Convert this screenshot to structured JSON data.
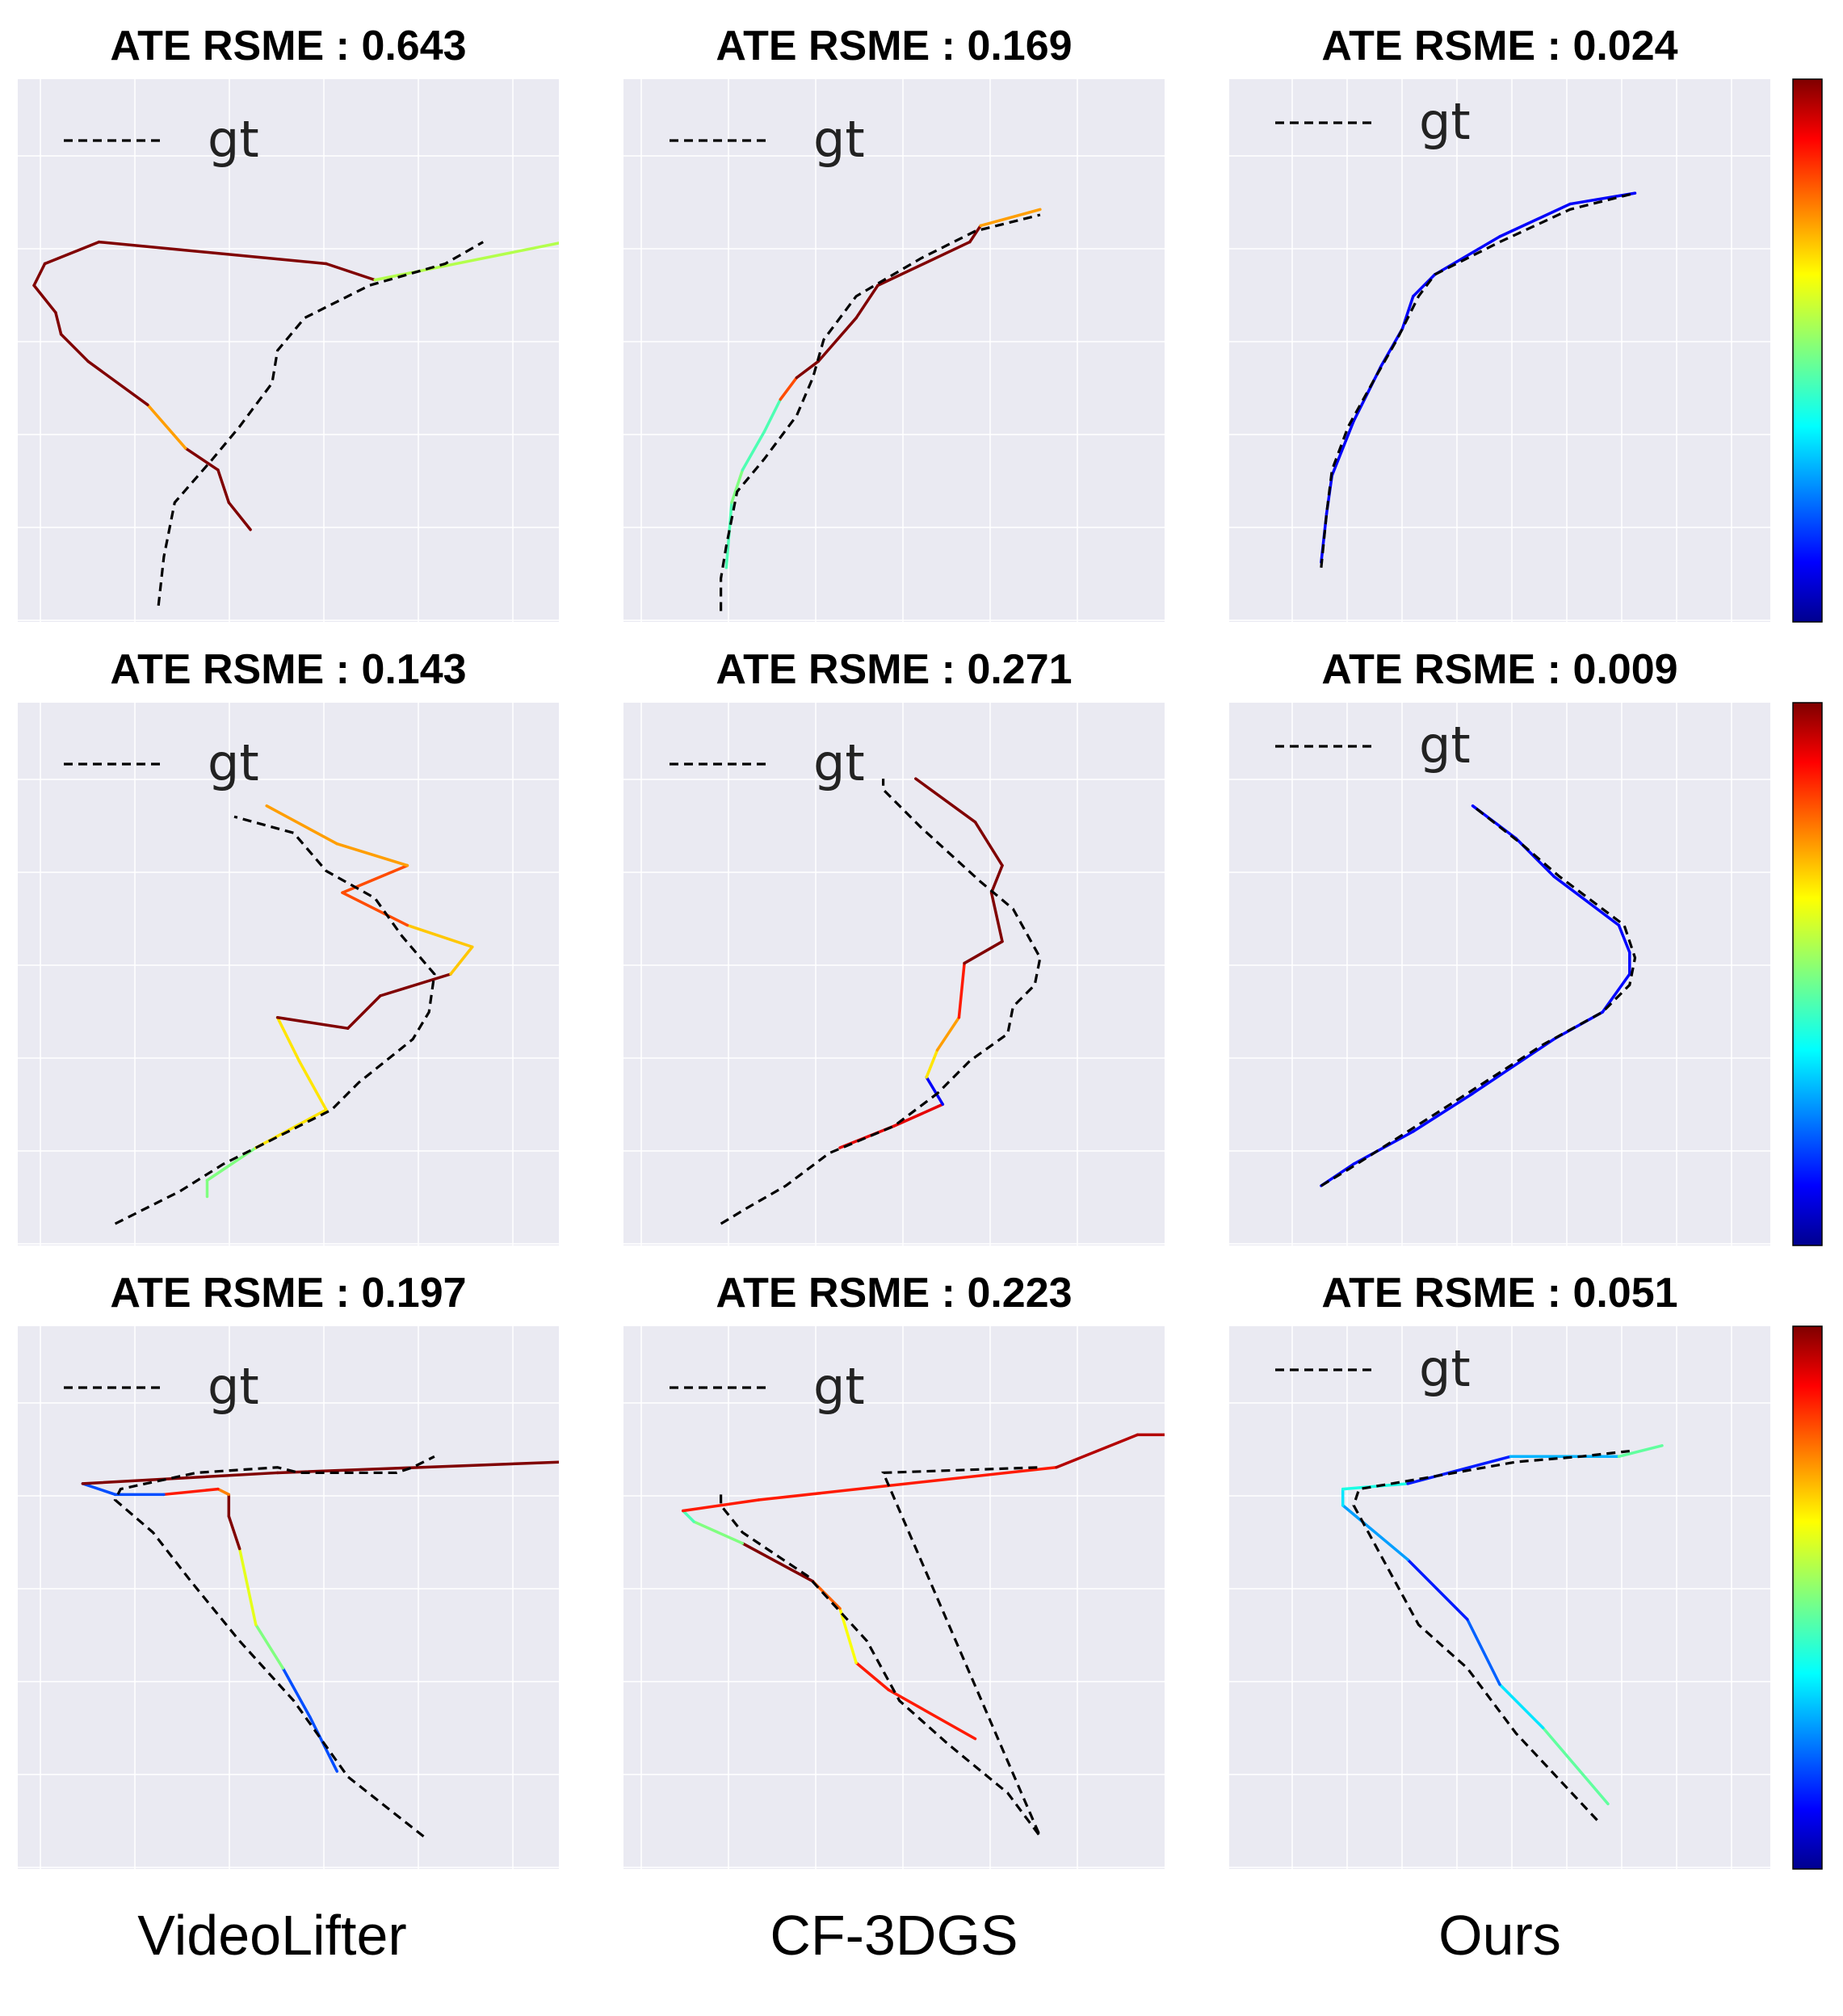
{
  "chart_data": [
    {
      "type": "line",
      "title": "ATE RSME : 0.643",
      "legend": [
        "gt"
      ],
      "grid": true,
      "legend_placement": "top-left",
      "colormap": "jet",
      "gt": [
        [
          0.26,
          0.97
        ],
        [
          0.27,
          0.88
        ],
        [
          0.29,
          0.78
        ],
        [
          0.36,
          0.7
        ],
        [
          0.41,
          0.64
        ],
        [
          0.47,
          0.56
        ],
        [
          0.48,
          0.5
        ],
        [
          0.53,
          0.44
        ],
        [
          0.65,
          0.38
        ],
        [
          0.79,
          0.34
        ],
        [
          0.86,
          0.3
        ]
      ],
      "traj": [
        [
          0.43,
          0.83,
          1.0
        ],
        [
          0.39,
          0.78,
          1.0
        ],
        [
          0.37,
          0.72,
          1.0
        ],
        [
          0.31,
          0.68,
          0.72
        ],
        [
          0.24,
          0.6,
          1.0
        ],
        [
          0.13,
          0.52,
          1.0
        ],
        [
          0.08,
          0.47,
          1.0
        ],
        [
          0.07,
          0.43,
          1.0
        ],
        [
          0.03,
          0.38,
          1.0
        ],
        [
          0.05,
          0.34,
          1.0
        ],
        [
          0.15,
          0.3,
          1.0
        ],
        [
          0.57,
          0.34,
          1.0
        ],
        [
          0.66,
          0.37,
          0.55
        ],
        [
          1.01,
          0.3,
          0.55
        ]
      ]
    },
    {
      "type": "line",
      "title": "ATE RSME : 0.169",
      "legend": [
        "gt"
      ],
      "grid": true,
      "legend_placement": "top-left",
      "colormap": "jet",
      "gt": [
        [
          0.18,
          0.98
        ],
        [
          0.18,
          0.92
        ],
        [
          0.19,
          0.86
        ],
        [
          0.21,
          0.76
        ],
        [
          0.26,
          0.7
        ],
        [
          0.32,
          0.62
        ],
        [
          0.35,
          0.55
        ],
        [
          0.37,
          0.48
        ],
        [
          0.43,
          0.4
        ],
        [
          0.55,
          0.33
        ],
        [
          0.65,
          0.28
        ],
        [
          0.77,
          0.25
        ]
      ],
      "traj": [
        [
          0.19,
          0.9,
          0.45
        ],
        [
          0.2,
          0.78,
          0.5
        ],
        [
          0.22,
          0.72,
          0.45
        ],
        [
          0.26,
          0.65,
          0.45
        ],
        [
          0.29,
          0.59,
          0.8
        ],
        [
          0.32,
          0.55,
          1.0
        ],
        [
          0.36,
          0.52,
          1.0
        ],
        [
          0.43,
          0.44,
          1.0
        ],
        [
          0.47,
          0.38,
          1.0
        ],
        [
          0.64,
          0.3,
          1.0
        ],
        [
          0.66,
          0.27,
          0.72
        ],
        [
          0.77,
          0.24,
          0.72
        ]
      ]
    },
    {
      "type": "line",
      "title": "ATE RSME : 0.024",
      "legend": [
        "gt"
      ],
      "grid": true,
      "legend_placement": "top-left",
      "colormap": "jet",
      "colorbar": true,
      "gt": [
        [
          0.17,
          0.9
        ],
        [
          0.18,
          0.8
        ],
        [
          0.19,
          0.72
        ],
        [
          0.22,
          0.64
        ],
        [
          0.27,
          0.55
        ],
        [
          0.31,
          0.48
        ],
        [
          0.35,
          0.4
        ],
        [
          0.38,
          0.36
        ],
        [
          0.5,
          0.3
        ],
        [
          0.63,
          0.24
        ],
        [
          0.75,
          0.21
        ]
      ],
      "traj": [
        [
          0.17,
          0.89,
          0.12
        ],
        [
          0.18,
          0.8,
          0.12
        ],
        [
          0.19,
          0.73,
          0.12
        ],
        [
          0.23,
          0.63,
          0.12
        ],
        [
          0.28,
          0.53,
          0.12
        ],
        [
          0.32,
          0.46,
          0.12
        ],
        [
          0.34,
          0.4,
          0.12
        ],
        [
          0.38,
          0.36,
          0.12
        ],
        [
          0.5,
          0.29,
          0.12
        ],
        [
          0.63,
          0.23,
          0.12
        ],
        [
          0.75,
          0.21,
          0.12
        ]
      ]
    },
    {
      "type": "line",
      "title": "ATE RSME : 0.143",
      "legend": [
        "gt"
      ],
      "grid": true,
      "legend_placement": "top-left",
      "colormap": "jet",
      "gt": [
        [
          0.18,
          0.96
        ],
        [
          0.22,
          0.94
        ],
        [
          0.3,
          0.9
        ],
        [
          0.38,
          0.85
        ],
        [
          0.48,
          0.8
        ],
        [
          0.58,
          0.75
        ],
        [
          0.63,
          0.7
        ],
        [
          0.73,
          0.62
        ],
        [
          0.76,
          0.57
        ],
        [
          0.77,
          0.5
        ],
        [
          0.71,
          0.43
        ],
        [
          0.66,
          0.36
        ],
        [
          0.57,
          0.31
        ],
        [
          0.51,
          0.24
        ],
        [
          0.4,
          0.21
        ]
      ],
      "traj": [
        [
          0.35,
          0.91,
          0.5
        ],
        [
          0.35,
          0.88,
          0.5
        ],
        [
          0.44,
          0.82,
          0.65
        ],
        [
          0.57,
          0.75,
          0.65
        ],
        [
          0.52,
          0.66,
          0.65
        ],
        [
          0.48,
          0.58,
          1.0
        ],
        [
          0.61,
          0.6,
          1.0
        ],
        [
          0.67,
          0.54,
          1.0
        ],
        [
          0.8,
          0.5,
          0.68
        ],
        [
          0.84,
          0.45,
          0.68
        ],
        [
          0.72,
          0.41,
          0.8
        ],
        [
          0.6,
          0.35,
          0.8
        ],
        [
          0.72,
          0.3,
          0.72
        ],
        [
          0.59,
          0.26,
          0.72
        ],
        [
          0.46,
          0.19,
          0.4
        ]
      ]
    },
    {
      "type": "line",
      "title": "ATE RSME : 0.271",
      "legend": [
        "gt"
      ],
      "grid": true,
      "legend_placement": "top-left",
      "colormap": "jet",
      "gt": [
        [
          0.18,
          0.96
        ],
        [
          0.23,
          0.93
        ],
        [
          0.3,
          0.89
        ],
        [
          0.38,
          0.83
        ],
        [
          0.5,
          0.78
        ],
        [
          0.58,
          0.72
        ],
        [
          0.64,
          0.66
        ],
        [
          0.71,
          0.61
        ],
        [
          0.72,
          0.56
        ],
        [
          0.76,
          0.52
        ],
        [
          0.77,
          0.47
        ],
        [
          0.72,
          0.38
        ],
        [
          0.66,
          0.33
        ],
        [
          0.55,
          0.23
        ],
        [
          0.48,
          0.16
        ],
        [
          0.48,
          0.14
        ]
      ],
      "traj": [
        [
          0.4,
          0.82,
          0.9
        ],
        [
          0.5,
          0.78,
          0.9
        ],
        [
          0.59,
          0.74,
          0.12
        ],
        [
          0.56,
          0.69,
          0.65
        ],
        [
          0.58,
          0.64,
          0.72
        ],
        [
          0.62,
          0.58,
          0.85
        ],
        [
          0.63,
          0.48,
          1.0
        ],
        [
          0.7,
          0.44,
          1.0
        ],
        [
          0.68,
          0.35,
          1.0
        ],
        [
          0.7,
          0.3,
          1.0
        ],
        [
          0.65,
          0.22,
          1.0
        ],
        [
          0.54,
          0.14,
          1.0
        ]
      ]
    },
    {
      "type": "line",
      "title": "ATE RSME : 0.009",
      "legend": [
        "gt"
      ],
      "grid": true,
      "legend_placement": "top-left",
      "colormap": "jet",
      "colorbar": true,
      "gt": [
        [
          0.17,
          0.89
        ],
        [
          0.22,
          0.86
        ],
        [
          0.33,
          0.79
        ],
        [
          0.44,
          0.72
        ],
        [
          0.58,
          0.63
        ],
        [
          0.69,
          0.57
        ],
        [
          0.74,
          0.52
        ],
        [
          0.75,
          0.47
        ],
        [
          0.73,
          0.41
        ],
        [
          0.61,
          0.32
        ],
        [
          0.54,
          0.26
        ],
        [
          0.45,
          0.19
        ]
      ],
      "traj": [
        [
          0.17,
          0.89,
          0.13
        ],
        [
          0.23,
          0.85,
          0.13
        ],
        [
          0.34,
          0.79,
          0.13
        ],
        [
          0.45,
          0.72,
          0.13
        ],
        [
          0.6,
          0.62,
          0.13
        ],
        [
          0.69,
          0.57,
          0.13
        ],
        [
          0.74,
          0.5,
          0.13
        ],
        [
          0.74,
          0.46,
          0.13
        ],
        [
          0.72,
          0.41,
          0.13
        ],
        [
          0.6,
          0.32,
          0.13
        ],
        [
          0.53,
          0.25,
          0.13
        ],
        [
          0.45,
          0.19,
          0.13
        ]
      ]
    },
    {
      "type": "line",
      "title": "ATE RSME : 0.197",
      "legend": [
        "gt"
      ],
      "grid": true,
      "legend_placement": "top-left",
      "colormap": "jet",
      "gt": [
        [
          0.75,
          0.94
        ],
        [
          0.61,
          0.83
        ],
        [
          0.51,
          0.69
        ],
        [
          0.41,
          0.58
        ],
        [
          0.32,
          0.47
        ],
        [
          0.25,
          0.38
        ],
        [
          0.18,
          0.32
        ],
        [
          0.19,
          0.3
        ],
        [
          0.33,
          0.27
        ],
        [
          0.48,
          0.26
        ],
        [
          0.52,
          0.27
        ],
        [
          0.7,
          0.27
        ],
        [
          0.73,
          0.26
        ],
        [
          0.77,
          0.24
        ]
      ],
      "traj": [
        [
          0.59,
          0.82,
          0.2
        ],
        [
          0.54,
          0.72,
          0.2
        ],
        [
          0.49,
          0.63,
          0.5
        ],
        [
          0.44,
          0.55,
          0.6
        ],
        [
          0.41,
          0.41,
          1.0
        ],
        [
          0.39,
          0.35,
          1.0
        ],
        [
          0.39,
          0.31,
          0.75
        ],
        [
          0.37,
          0.3,
          0.85
        ],
        [
          0.27,
          0.31,
          0.2
        ],
        [
          0.18,
          0.31,
          0.2
        ],
        [
          0.12,
          0.29,
          1.0
        ],
        [
          0.48,
          0.27,
          1.0
        ],
        [
          1.01,
          0.25,
          1.0
        ]
      ]
    },
    {
      "type": "line",
      "title": "ATE RSME : 0.223",
      "legend": [
        "gt"
      ],
      "grid": true,
      "legend_placement": "top-left",
      "colormap": "jet",
      "gt": [
        [
          0.18,
          0.31
        ],
        [
          0.18,
          0.33
        ],
        [
          0.22,
          0.38
        ],
        [
          0.34,
          0.46
        ],
        [
          0.45,
          0.58
        ],
        [
          0.51,
          0.69
        ],
        [
          0.6,
          0.77
        ],
        [
          0.71,
          0.86
        ],
        [
          0.77,
          0.94
        ],
        [
          0.48,
          0.27
        ],
        [
          0.77,
          0.26
        ]
      ],
      "traj": [
        [
          0.65,
          0.76,
          0.85
        ],
        [
          0.49,
          0.67,
          0.85
        ],
        [
          0.43,
          0.62,
          0.62
        ],
        [
          0.4,
          0.52,
          0.78
        ],
        [
          0.35,
          0.47,
          1.0
        ],
        [
          0.22,
          0.4,
          0.5
        ],
        [
          0.13,
          0.36,
          0.45
        ],
        [
          0.11,
          0.34,
          0.85
        ],
        [
          0.25,
          0.32,
          0.85
        ],
        [
          0.8,
          0.26,
          0.95
        ],
        [
          0.95,
          0.2,
          0.95
        ],
        [
          1.01,
          0.2,
          0.95
        ]
      ]
    },
    {
      "type": "line",
      "title": "ATE RSME : 0.051",
      "legend": [
        "gt"
      ],
      "grid": true,
      "legend_placement": "top-left",
      "colormap": "jet",
      "colorbar": true,
      "gt": [
        [
          0.68,
          0.91
        ],
        [
          0.53,
          0.75
        ],
        [
          0.44,
          0.63
        ],
        [
          0.35,
          0.55
        ],
        [
          0.23,
          0.33
        ],
        [
          0.24,
          0.3
        ],
        [
          0.36,
          0.28
        ],
        [
          0.53,
          0.25
        ],
        [
          0.65,
          0.24
        ],
        [
          0.74,
          0.23
        ]
      ],
      "traj": [
        [
          0.7,
          0.88,
          0.47
        ],
        [
          0.58,
          0.74,
          0.35
        ],
        [
          0.5,
          0.66,
          0.22
        ],
        [
          0.44,
          0.54,
          0.15
        ],
        [
          0.33,
          0.43,
          0.28
        ],
        [
          0.21,
          0.33,
          0.35
        ],
        [
          0.21,
          0.3,
          0.4
        ],
        [
          0.33,
          0.29,
          0.15
        ],
        [
          0.52,
          0.24,
          0.3
        ],
        [
          0.72,
          0.24,
          0.47
        ],
        [
          0.8,
          0.22,
          0.47
        ]
      ]
    }
  ],
  "columns": [
    "VideoLifter",
    "CF-3DGS",
    "Ours"
  ]
}
